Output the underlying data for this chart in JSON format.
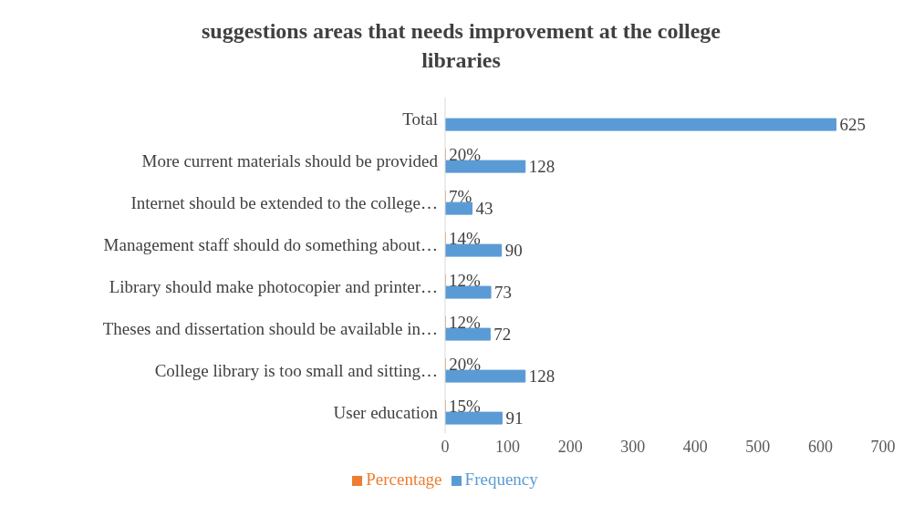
{
  "chart_data": {
    "type": "bar",
    "orientation": "horizontal",
    "title": "suggestions areas that needs  improvement at the college libraries",
    "categories": [
      "Total",
      "More current materials should be provided",
      "Internet should be extended to the college…",
      "Management staff should do something about…",
      "Library should make photocopier and printer…",
      "Theses and dissertation should be available in…",
      "College library is too small and sitting…",
      "User education"
    ],
    "series": [
      {
        "name": "Percentage",
        "color": "#ed7d31",
        "values": [
          null,
          0.2,
          0.07,
          0.14,
          0.12,
          0.12,
          0.2,
          0.15
        ],
        "value_labels": [
          null,
          "20%",
          "7%",
          "14%",
          "12%",
          "12%",
          "20%",
          "15%"
        ]
      },
      {
        "name": "Frequency",
        "color": "#5b9bd5",
        "values": [
          625,
          128,
          43,
          90,
          73,
          72,
          128,
          91
        ],
        "value_labels": [
          "625",
          "128",
          "43",
          "90",
          "73",
          "72",
          "128",
          "91"
        ]
      }
    ],
    "xlim": [
      0,
      700
    ],
    "xticks": [
      0,
      100,
      200,
      300,
      400,
      500,
      600,
      700
    ],
    "grid": false,
    "legend": "bottom"
  }
}
